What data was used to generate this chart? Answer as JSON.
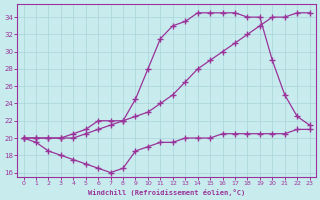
{
  "background_color": "#c8ecee",
  "grid_color": "#a8d4d8",
  "line_color": "#993399",
  "marker_color": "#993399",
  "xlabel": "Windchill (Refroidissement éolien,°C)",
  "xlabel_color": "#993399",
  "tick_color": "#993399",
  "spine_color": "#993399",
  "xlim": [
    -0.5,
    23.5
  ],
  "ylim": [
    15.5,
    35.5
  ],
  "yticks": [
    16,
    18,
    20,
    22,
    24,
    26,
    28,
    30,
    32,
    34
  ],
  "xticks": [
    0,
    1,
    2,
    3,
    4,
    5,
    6,
    7,
    8,
    9,
    10,
    11,
    12,
    13,
    14,
    15,
    16,
    17,
    18,
    19,
    20,
    21,
    22,
    23
  ],
  "series": [
    {
      "x": [
        0,
        1,
        2,
        3,
        4,
        5,
        6,
        7,
        8,
        9,
        10,
        11,
        12,
        13,
        14,
        15,
        16,
        17,
        18,
        19,
        20,
        21,
        22,
        23
      ],
      "y": [
        20.0,
        19.5,
        18.5,
        18.0,
        17.5,
        17.0,
        16.5,
        16.0,
        16.5,
        18.5,
        19.0,
        19.5,
        19.5,
        20.0,
        20.0,
        20.0,
        20.5,
        20.5,
        20.5,
        20.5,
        20.5,
        20.5,
        21.0,
        21.0
      ]
    },
    {
      "x": [
        0,
        1,
        2,
        3,
        4,
        5,
        6,
        7,
        8,
        9,
        10,
        11,
        12,
        13,
        14,
        15,
        16,
        17,
        18,
        19,
        20,
        21,
        22,
        23
      ],
      "y": [
        20.0,
        20.0,
        20.0,
        20.0,
        20.0,
        20.5,
        21.0,
        21.5,
        22.0,
        22.5,
        23.0,
        24.0,
        25.0,
        26.5,
        28.0,
        29.0,
        30.0,
        31.0,
        32.0,
        33.0,
        34.0,
        34.0,
        34.5,
        34.5
      ]
    },
    {
      "x": [
        0,
        1,
        2,
        3,
        4,
        5,
        6,
        7,
        8,
        9,
        10,
        11,
        12,
        13,
        14,
        15,
        16,
        17,
        18,
        19,
        20,
        21,
        22,
        23
      ],
      "y": [
        20.0,
        20.0,
        20.0,
        20.0,
        20.5,
        21.0,
        22.0,
        22.0,
        22.0,
        24.5,
        28.0,
        31.5,
        33.0,
        33.5,
        34.5,
        34.5,
        34.5,
        34.5,
        34.0,
        34.0,
        29.0,
        25.0,
        22.5,
        21.5
      ]
    }
  ]
}
